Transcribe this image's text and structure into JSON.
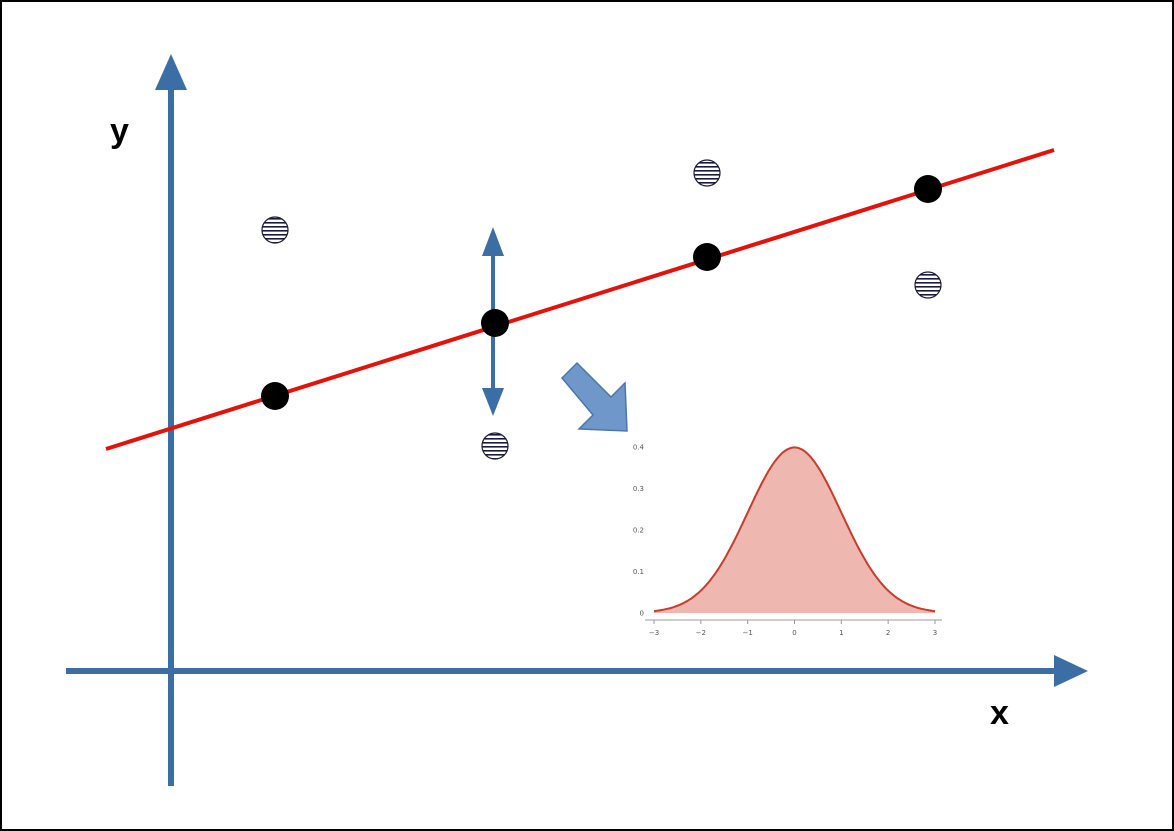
{
  "diagram": {
    "x_axis_label": "x",
    "y_axis_label": "y",
    "colors": {
      "axis": "#3a6ea5",
      "regression_line": "#e3120b",
      "fitted_point": "#000000",
      "observed_point_stripes": "#1a1a3a",
      "arrow": "#6f97c9",
      "density_line": "#cc3a2a",
      "density_fill": "#eeb8b0"
    },
    "icons": {
      "residual_arrow": "double-headed-vertical-arrow-icon",
      "pointer": "diagonal-arrow-icon"
    }
  },
  "inset": {
    "curve": "normal-density",
    "x_ticks": [
      "-3",
      "-2",
      "-1",
      "0",
      "1",
      "2",
      "3"
    ],
    "y_ticks": [
      "0",
      "0.1",
      "0.2",
      "0.3",
      "0.4"
    ]
  }
}
